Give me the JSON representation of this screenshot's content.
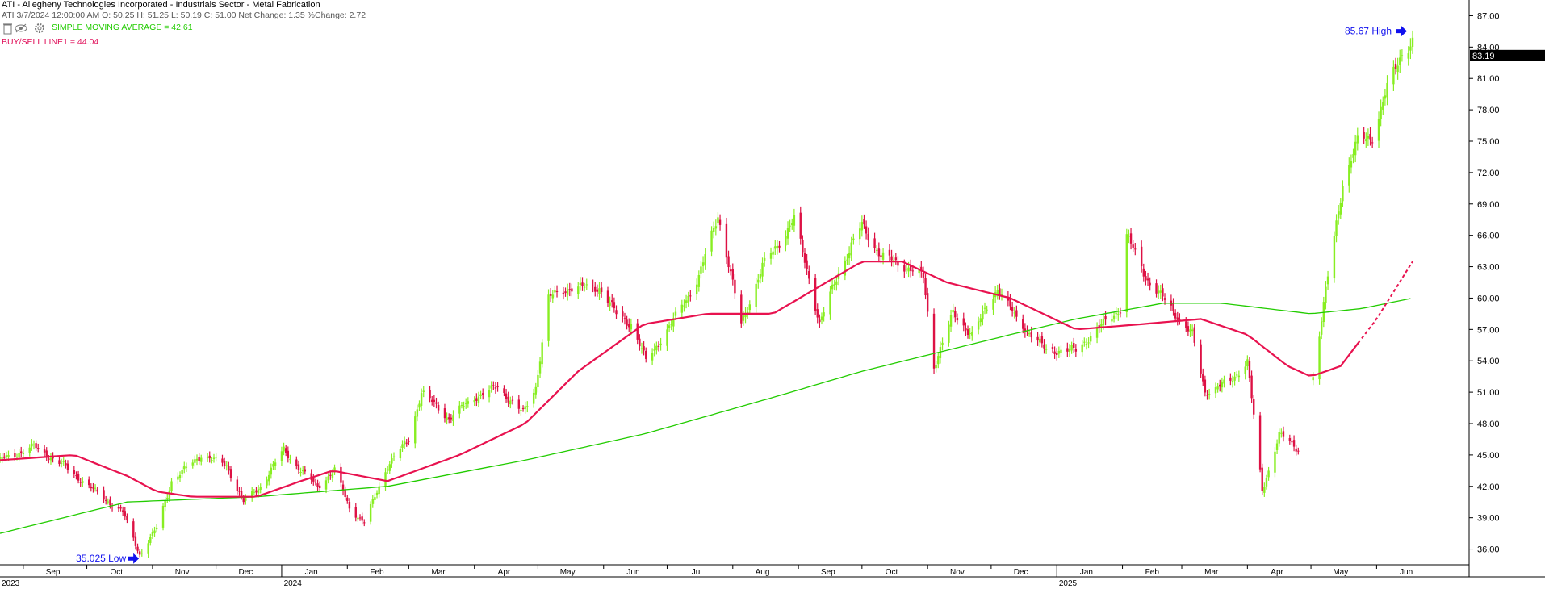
{
  "header": {
    "title": "ATI - Allegheny Technologies Incorporated - Industrials Sector - Metal Fabrication",
    "bar_info": "ATI 3/7/2024 12:00:00 AM O: 50.25 H: 51.25 L: 50.19 C: 51.00 Net Change: 1.35  %Change: 2.72",
    "sma_label": "SIMPLE MOVING AVERAGE      = 42.61",
    "buysell_label": "BUY/SELL LINE1 = 44.04",
    "icons": [
      "trash-icon",
      "eye-off-icon",
      "gear-icon"
    ]
  },
  "annotations": {
    "high_label": "85.67 High",
    "low_label": "35.025 Low",
    "last_price": "83.19"
  },
  "colors": {
    "up": "#88ee22",
    "down": "#dd1144",
    "ma_fast": "#e8124f",
    "ma_slow": "#22cc00",
    "arrow": "#1010ee",
    "last_price_bg": "#000000"
  },
  "chart_data": {
    "type": "candlestick",
    "symbol": "ATI",
    "y_axis": {
      "min": 34.5,
      "max": 88.5,
      "ticks": [
        "87.00",
        "84.00",
        "81.00",
        "78.00",
        "75.00",
        "72.00",
        "69.00",
        "66.00",
        "63.00",
        "60.00",
        "57.00",
        "54.00",
        "51.00",
        "48.00",
        "45.00",
        "42.00",
        "39.00",
        "36.00"
      ],
      "position": "right"
    },
    "x_axis": {
      "months": [
        "Sep",
        "Oct",
        "Nov",
        "Dec",
        "Jan",
        "Feb",
        "Mar",
        "Apr",
        "May",
        "Jun",
        "Jul",
        "Aug",
        "Sep",
        "Oct",
        "Nov",
        "Dec",
        "Jan",
        "Feb",
        "Mar",
        "Apr",
        "May",
        "Jun"
      ],
      "years": [
        "2023",
        "2024",
        "2025"
      ]
    },
    "anchors": [
      [
        "2023-08-21",
        44.5
      ],
      [
        "2023-09-06",
        45.8
      ],
      [
        "2023-09-20",
        44.0
      ],
      [
        "2023-10-05",
        41.5
      ],
      [
        "2023-10-18",
        39.5
      ],
      [
        "2023-10-26",
        35.5
      ],
      [
        "2023-11-03",
        38.0
      ],
      [
        "2023-11-10",
        42.5
      ],
      [
        "2023-11-24",
        45.0
      ],
      [
        "2023-12-06",
        44.0
      ],
      [
        "2023-12-14",
        40.5
      ],
      [
        "2023-12-22",
        42.0
      ],
      [
        "2024-01-02",
        45.5
      ],
      [
        "2024-01-10",
        43.5
      ],
      [
        "2024-01-18",
        42.0
      ],
      [
        "2024-01-26",
        43.5
      ],
      [
        "2024-02-02",
        40.0
      ],
      [
        "2024-02-09",
        38.5
      ],
      [
        "2024-02-20",
        44.0
      ],
      [
        "2024-03-01",
        46.5
      ],
      [
        "2024-03-07",
        51.0
      ],
      [
        "2024-03-20",
        48.5
      ],
      [
        "2024-04-01",
        50.5
      ],
      [
        "2024-04-12",
        51.5
      ],
      [
        "2024-04-24",
        49.0
      ],
      [
        "2024-04-30",
        51.5
      ],
      [
        "2024-05-06",
        60.0
      ],
      [
        "2024-05-16",
        61.0
      ],
      [
        "2024-05-30",
        61.0
      ],
      [
        "2024-06-07",
        58.5
      ],
      [
        "2024-06-14",
        57.5
      ],
      [
        "2024-06-21",
        54.0
      ],
      [
        "2024-07-03",
        57.5
      ],
      [
        "2024-07-16",
        62.0
      ],
      [
        "2024-07-25",
        68.0
      ],
      [
        "2024-08-05",
        57.5
      ],
      [
        "2024-08-15",
        63.0
      ],
      [
        "2024-08-30",
        67.5
      ],
      [
        "2024-09-06",
        62.0
      ],
      [
        "2024-09-11",
        57.5
      ],
      [
        "2024-09-20",
        62.5
      ],
      [
        "2024-10-01",
        67.0
      ],
      [
        "2024-10-10",
        64.0
      ],
      [
        "2024-10-22",
        63.0
      ],
      [
        "2024-10-30",
        62.0
      ],
      [
        "2024-11-04",
        53.5
      ],
      [
        "2024-11-13",
        58.5
      ],
      [
        "2024-11-22",
        56.5
      ],
      [
        "2024-12-04",
        61.0
      ],
      [
        "2024-12-13",
        58.0
      ],
      [
        "2024-12-27",
        55.0
      ],
      [
        "2025-01-10",
        55.0
      ],
      [
        "2025-01-20",
        57.0
      ],
      [
        "2025-01-31",
        59.0
      ],
      [
        "2025-02-03",
        66.0
      ],
      [
        "2025-02-12",
        62.0
      ],
      [
        "2025-02-24",
        59.0
      ],
      [
        "2025-03-06",
        56.5
      ],
      [
        "2025-03-12",
        51.0
      ],
      [
        "2025-03-24",
        52.0
      ],
      [
        "2025-04-01",
        54.0
      ],
      [
        "2025-04-08",
        41.5
      ],
      [
        "2025-04-16",
        47.0
      ],
      [
        "2025-04-25",
        45.5
      ],
      [
        "2025-05-02",
        52.5
      ],
      [
        "2025-05-09",
        62.0
      ],
      [
        "2025-05-16",
        71.0
      ],
      [
        "2025-05-23",
        75.0
      ],
      [
        "2025-05-30",
        75.5
      ],
      [
        "2025-06-06",
        80.0
      ],
      [
        "2025-06-13",
        83.5
      ],
      [
        "2025-06-18",
        84.5
      ]
    ],
    "gaps": [
      [
        "2025-04-26",
        "2025-05-01"
      ]
    ],
    "ma_fast": [
      [
        "2023-08-21",
        44.5
      ],
      [
        "2023-09-25",
        45.0
      ],
      [
        "2023-10-20",
        43.0
      ],
      [
        "2023-11-03",
        41.5
      ],
      [
        "2023-11-20",
        41.0
      ],
      [
        "2023-12-20",
        41.0
      ],
      [
        "2024-01-10",
        42.5
      ],
      [
        "2024-01-25",
        43.5
      ],
      [
        "2024-02-20",
        42.5
      ],
      [
        "2024-03-25",
        45.0
      ],
      [
        "2024-04-25",
        48.0
      ],
      [
        "2024-05-20",
        53.0
      ],
      [
        "2024-06-20",
        57.5
      ],
      [
        "2024-07-20",
        58.5
      ],
      [
        "2024-08-20",
        58.5
      ],
      [
        "2024-09-10",
        61.0
      ],
      [
        "2024-10-01",
        63.5
      ],
      [
        "2024-10-20",
        63.5
      ],
      [
        "2024-11-10",
        61.5
      ],
      [
        "2024-12-10",
        60.0
      ],
      [
        "2025-01-10",
        57.0
      ],
      [
        "2025-02-10",
        57.5
      ],
      [
        "2025-03-10",
        58.0
      ],
      [
        "2025-04-01",
        56.5
      ],
      [
        "2025-04-20",
        53.5
      ],
      [
        "2025-05-01",
        52.5
      ],
      [
        "2025-05-15",
        53.5
      ],
      [
        "2025-06-01",
        58.0
      ],
      [
        "2025-06-18",
        63.5
      ]
    ],
    "ma_fast_projected_from": "2025-05-25",
    "ma_slow": [
      [
        "2023-08-21",
        37.5
      ],
      [
        "2023-10-20",
        40.5
      ],
      [
        "2023-12-20",
        41.0
      ],
      [
        "2024-02-20",
        42.0
      ],
      [
        "2024-04-25",
        44.5
      ],
      [
        "2024-06-20",
        47.0
      ],
      [
        "2024-08-20",
        50.5
      ],
      [
        "2024-10-01",
        53.0
      ],
      [
        "2024-11-10",
        55.0
      ],
      [
        "2024-12-10",
        56.5
      ],
      [
        "2025-01-10",
        58.0
      ],
      [
        "2025-02-20",
        59.5
      ],
      [
        "2025-03-20",
        59.5
      ],
      [
        "2025-05-01",
        58.5
      ],
      [
        "2025-05-25",
        59.0
      ],
      [
        "2025-06-18",
        60.0
      ]
    ],
    "high": {
      "date": "2025-06-18",
      "value": 85.67
    },
    "low": {
      "date": "2023-10-26",
      "value": 35.025
    },
    "last": 83.19
  }
}
